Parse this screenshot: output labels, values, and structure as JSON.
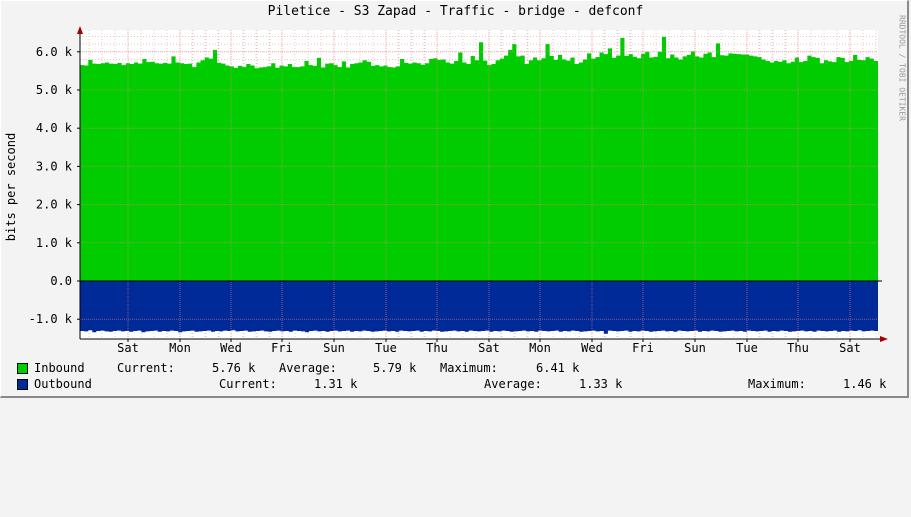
{
  "chart_data": {
    "type": "area",
    "title": "Piletice - S3 Zapad - Traffic - bridge - defconf",
    "ylabel": "bits per second",
    "watermark": "RRDTOOL / TOBI OETIKER",
    "y_ticks": [
      "6.0 k",
      "5.0 k",
      "4.0 k",
      "3.0 k",
      "2.0 k",
      "1.0 k",
      "0.0",
      "-1.0 k"
    ],
    "y_tick_values": [
      6000,
      5000,
      4000,
      3000,
      2000,
      1000,
      0,
      -1000
    ],
    "ylim": [
      -1400,
      6500
    ],
    "x_ticks": [
      "Sat",
      "Mon",
      "Wed",
      "Fri",
      "Sun",
      "Tue",
      "Thu",
      "Sat",
      "Mon",
      "Wed",
      "Fri",
      "Sun",
      "Tue",
      "Thu",
      "Sat"
    ],
    "colors": {
      "inbound": "#00cc00",
      "outbound": "#002a97",
      "grid": "#ff8080",
      "axis_arrow": "#a00000"
    },
    "series": [
      {
        "name": "Inbound",
        "color": "#00cc00",
        "values": [
          5650,
          5640,
          5790,
          5690,
          5680,
          5700,
          5720,
          5690,
          5680,
          5710,
          5650,
          5700,
          5680,
          5720,
          5690,
          5810,
          5730,
          5740,
          5700,
          5690,
          5710,
          5690,
          5880,
          5720,
          5700,
          5680,
          5690,
          5600,
          5720,
          5780,
          5850,
          5820,
          6050,
          5710,
          5690,
          5640,
          5620,
          5580,
          5630,
          5600,
          5680,
          5640,
          5570,
          5590,
          5600,
          5620,
          5700,
          5580,
          5640,
          5620,
          5680,
          5600,
          5600,
          5620,
          5760,
          5650,
          5630,
          5840,
          5590,
          5690,
          5700,
          5650,
          5600,
          5750,
          5590,
          5680,
          5700,
          5720,
          5780,
          5740,
          5630,
          5650,
          5620,
          5640,
          5600,
          5590,
          5620,
          5810,
          5710,
          5690,
          5720,
          5700,
          5660,
          5700,
          5810,
          5830,
          5790,
          5800,
          5720,
          5690,
          5760,
          5980,
          5720,
          5680,
          5890,
          5780,
          6250,
          5770,
          5650,
          5680,
          5780,
          5820,
          5900,
          6050,
          6200,
          5880,
          5900,
          5680,
          5780,
          5850,
          5780,
          5830,
          6200,
          5890,
          5790,
          5920,
          5800,
          5770,
          5850,
          5680,
          5720,
          5800,
          5960,
          5820,
          5860,
          5980,
          5940,
          6090,
          5840,
          5900,
          6360,
          5890,
          5940,
          5870,
          5830,
          5950,
          6000,
          5850,
          5870,
          6000,
          6390,
          5830,
          5930,
          5850,
          5800,
          5880,
          5920,
          6010,
          5880,
          5850,
          5950,
          5980,
          5860,
          6220,
          5910,
          5900,
          5960,
          5950,
          5940,
          5930,
          5930,
          5900,
          5880,
          5860,
          5800,
          5760,
          5720,
          5760,
          5740,
          5780,
          5700,
          5740,
          5850,
          5730,
          5760,
          5900,
          5860,
          5840,
          5700,
          5780,
          5750,
          5730,
          5860,
          5840,
          5730,
          5760,
          5920,
          5790,
          5780,
          5860,
          5820,
          5760
        ],
        "legend": {
          "current_label": "Current:",
          "current": "5.76 k",
          "average_label": "Average:",
          "average": "5.79 k",
          "maximum_label": "Maximum:",
          "maximum": "6.41 k"
        }
      },
      {
        "name": "Outbound",
        "color": "#002a97",
        "values": [
          -1310,
          -1320,
          -1290,
          -1340,
          -1310,
          -1300,
          -1320,
          -1330,
          -1310,
          -1300,
          -1320,
          -1310,
          -1330,
          -1310,
          -1300,
          -1340,
          -1320,
          -1310,
          -1300,
          -1330,
          -1310,
          -1320,
          -1300,
          -1310,
          -1340,
          -1320,
          -1310,
          -1300,
          -1330,
          -1320,
          -1310,
          -1300,
          -1330,
          -1310,
          -1320,
          -1300,
          -1310,
          -1290,
          -1320,
          -1310,
          -1300,
          -1330,
          -1320,
          -1310,
          -1300,
          -1320,
          -1330,
          -1310,
          -1300,
          -1320,
          -1310,
          -1330,
          -1300,
          -1310,
          -1320,
          -1340,
          -1310,
          -1300,
          -1320,
          -1310,
          -1330,
          -1310,
          -1300,
          -1320,
          -1310,
          -1300,
          -1330,
          -1310,
          -1320,
          -1300,
          -1310,
          -1330,
          -1320,
          -1310,
          -1300,
          -1320,
          -1310,
          -1330,
          -1300,
          -1310,
          -1320,
          -1310,
          -1300,
          -1330,
          -1310,
          -1320,
          -1300,
          -1310,
          -1330,
          -1320,
          -1310,
          -1300,
          -1320,
          -1310,
          -1330,
          -1300,
          -1310,
          -1320,
          -1310,
          -1300,
          -1330,
          -1310,
          -1320,
          -1300,
          -1310,
          -1330,
          -1320,
          -1310,
          -1300,
          -1320,
          -1310,
          -1330,
          -1300,
          -1310,
          -1320,
          -1310,
          -1300,
          -1330,
          -1310,
          -1320,
          -1300,
          -1310,
          -1330,
          -1320,
          -1310,
          -1300,
          -1320,
          -1310,
          -1380,
          -1300,
          -1310,
          -1320,
          -1310,
          -1300,
          -1330,
          -1310,
          -1320,
          -1300,
          -1310,
          -1330,
          -1320,
          -1310,
          -1300,
          -1320,
          -1310,
          -1330,
          -1300,
          -1310,
          -1320,
          -1310,
          -1300,
          -1330,
          -1310,
          -1320,
          -1300,
          -1310,
          -1330,
          -1320,
          -1310,
          -1300,
          -1320,
          -1310,
          -1330,
          -1300,
          -1310,
          -1320,
          -1310,
          -1300,
          -1330,
          -1310,
          -1320,
          -1300,
          -1310,
          -1330,
          -1320,
          -1310,
          -1300,
          -1320,
          -1310,
          -1330,
          -1300,
          -1310,
          -1320,
          -1310,
          -1300,
          -1330,
          -1310,
          -1320,
          -1300,
          -1310,
          -1290,
          -1320,
          -1310,
          -1300,
          -1310
        ],
        "legend": {
          "current_label": "Current:",
          "current": "1.31 k",
          "average_label": "Average:",
          "average": "1.33 k",
          "maximum_label": "Maximum:",
          "maximum": "1.46 k"
        }
      }
    ],
    "grid": true,
    "legend_position": "bottom-left"
  }
}
